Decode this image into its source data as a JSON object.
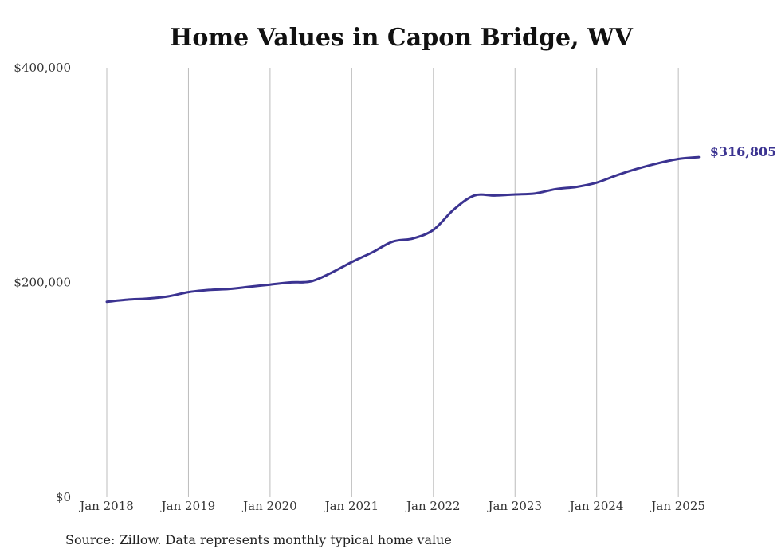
{
  "chart_data": {
    "type": "line",
    "title": "Home Values in Capon Bridge, WV",
    "source": "Source: Zillow. Data represents monthly typical home value",
    "x_ticks": [
      "Jan 2018",
      "Jan 2019",
      "Jan 2020",
      "Jan 2021",
      "Jan 2022",
      "Jan 2023",
      "Jan 2024",
      "Jan 2025"
    ],
    "y_ticks": [
      "$0",
      "$200,000",
      "$400,000"
    ],
    "ylim": [
      0,
      400000
    ],
    "xlim": [
      "2018-01",
      "2025-04"
    ],
    "grid": "vertical",
    "line_color": "#3b3391",
    "end_label": "$316,805",
    "series": [
      {
        "x": [
          "2018-01",
          "2018-04",
          "2018-07",
          "2018-10",
          "2019-01",
          "2019-04",
          "2019-07",
          "2019-10",
          "2020-01",
          "2020-04",
          "2020-07",
          "2020-10",
          "2021-01",
          "2021-04",
          "2021-07",
          "2021-10",
          "2022-01",
          "2022-04",
          "2022-07",
          "2022-10",
          "2023-01",
          "2023-04",
          "2023-07",
          "2023-10",
          "2024-01",
          "2024-04",
          "2024-07",
          "2024-10",
          "2025-01",
          "2025-04"
        ],
        "values": [
          182000,
          184000,
          185000,
          187000,
          191000,
          193000,
          194000,
          196000,
          198000,
          200000,
          201000,
          209000,
          219000,
          228000,
          238000,
          241000,
          249000,
          268000,
          281000,
          281000,
          282000,
          283000,
          287000,
          289000,
          293000,
          300000,
          306000,
          311000,
          315000,
          316805
        ]
      }
    ]
  }
}
